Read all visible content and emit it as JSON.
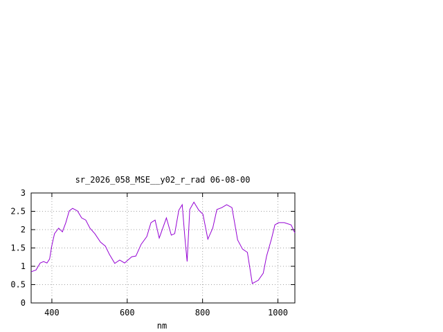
{
  "chart_data": {
    "type": "line",
    "title": "sr_2026_058_MSE__y02_r_rad 06-08-00",
    "x_label": "nm",
    "xlim": [
      345,
      1045
    ],
    "xticks": [
      400,
      600,
      800,
      1000
    ],
    "ylim": [
      0,
      3
    ],
    "yticks": [
      0,
      {
        "value": 0.5,
        "label": "0.5"
      },
      1,
      {
        "value": 1.5,
        "label": "1.5"
      },
      2,
      {
        "value": 2.5,
        "label": "2.5"
      },
      3
    ],
    "grid": true,
    "series": [
      {
        "color": "#9400d3",
        "x": [
          345,
          358,
          369,
          378,
          387,
          394,
          400,
          407,
          418,
          428,
          437,
          446,
          455,
          468,
          479,
          490,
          501,
          514,
          529,
          542,
          553,
          567,
          580,
          593,
          612,
          623,
          637,
          652,
          663,
          674,
          685,
          704,
          717,
          726,
          737,
          746,
          753,
          759,
          766,
          777,
          790,
          801,
          814,
          827,
          838,
          851,
          864,
          878,
          893,
          906,
          919,
          932,
          948,
          961,
          970,
          983,
          992,
          1002,
          1017,
          1035,
          1045
        ],
        "values": [
          0.85,
          0.9,
          1.09,
          1.13,
          1.09,
          1.2,
          1.57,
          1.89,
          2.04,
          1.94,
          2.19,
          2.51,
          2.58,
          2.51,
          2.32,
          2.26,
          2.04,
          1.89,
          1.66,
          1.55,
          1.32,
          1.08,
          1.17,
          1.09,
          1.26,
          1.28,
          1.6,
          1.81,
          2.19,
          2.26,
          1.77,
          2.32,
          1.85,
          1.89,
          2.53,
          2.68,
          1.79,
          1.13,
          2.55,
          2.75,
          2.53,
          2.42,
          1.74,
          2.04,
          2.55,
          2.6,
          2.68,
          2.6,
          1.72,
          1.47,
          1.38,
          0.53,
          0.62,
          0.81,
          1.28,
          1.75,
          2.13,
          2.19,
          2.19,
          2.13,
          1.91
        ]
      }
    ]
  }
}
